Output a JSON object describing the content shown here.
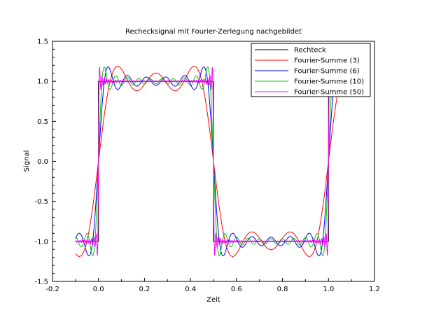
{
  "chart_data": {
    "type": "line",
    "title": "Rechecksignal mit Fourier-Zerlegung nachgebildet",
    "xlabel": "Zeit",
    "ylabel": "Signal",
    "xlim": [
      -0.2,
      1.2
    ],
    "ylim": [
      -1.5,
      1.5
    ],
    "x_ticks": [
      "-0.2",
      "0.0",
      "0.2",
      "0.4",
      "0.6",
      "0.8",
      "1.0",
      "1.2"
    ],
    "y_ticks": [
      "1.5",
      "1.0",
      "0.5",
      "0.0",
      "-0.5",
      "-1.0",
      "-1.5"
    ],
    "grid": false,
    "legend_position": "top-right",
    "period": 1.0,
    "x_range_plotted": [
      -0.1,
      1.1
    ],
    "series": [
      {
        "name": "Rechteck",
        "color": "#000000",
        "kind": "square",
        "x": [
          0.0,
          0.0,
          0.5,
          0.5,
          1.0,
          1.0
        ],
        "y": [
          -1,
          1,
          1,
          -1,
          -1,
          1
        ]
      },
      {
        "name": "Fourier-Summe (3)",
        "color": "#ff0000",
        "kind": "fourier",
        "terms": 3
      },
      {
        "name": "Fourier-Summe (6)",
        "color": "#0000ff",
        "kind": "fourier",
        "terms": 6
      },
      {
        "name": "Fourier-Summe (10)",
        "color": "#00cc00",
        "kind": "fourier",
        "terms": 10
      },
      {
        "name": "Fourier-Summe (50)",
        "color": "#ff00ff",
        "kind": "fourier",
        "terms": 50
      }
    ]
  }
}
